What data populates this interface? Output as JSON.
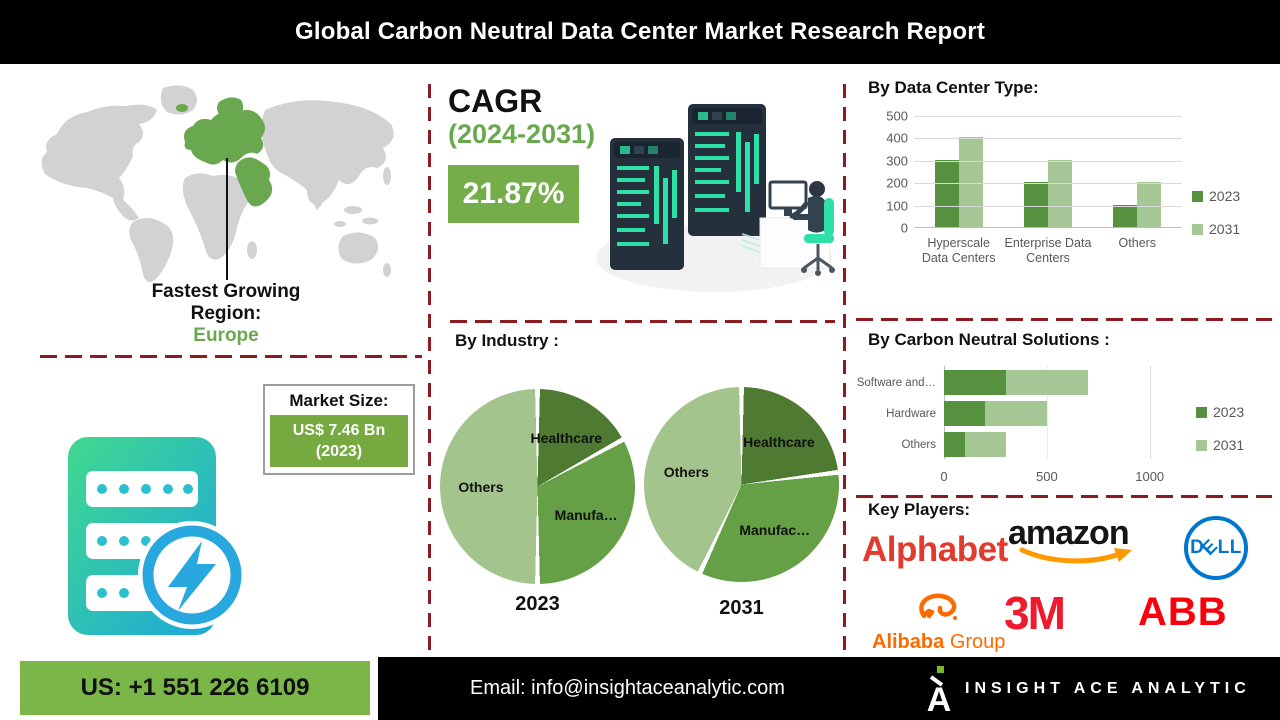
{
  "banner": {
    "title": "Global Carbon Neutral Data Center Market Research Report"
  },
  "map_section": {
    "caption_line1": "Fastest Growing",
    "caption_line2": "Region:",
    "region_value": "Europe",
    "land_color": "#d2d2d2",
    "highlight_color": "#6aa84f"
  },
  "cagr": {
    "heading": "CAGR",
    "period": "(2024-2031)",
    "value": "21.87%"
  },
  "market_size": {
    "label": "Market Size:",
    "value": "US$ 7.46 Bn",
    "year": "(2023)"
  },
  "key_players": {
    "heading": "Key Players:",
    "players": [
      {
        "name": "Alphabet",
        "color": "#e23b2e"
      },
      {
        "name": "amazon",
        "color": "#151515",
        "smile_color": "#ff9900"
      },
      {
        "name": "DELL",
        "color": "#0076ce"
      },
      {
        "name": "Alibaba Group",
        "name_parts": [
          "Alibaba",
          "Group"
        ],
        "color": "#ff6a00"
      },
      {
        "name": "3M",
        "color": "#ef1a2d"
      },
      {
        "name": "ABB",
        "color": "#fb000c"
      }
    ]
  },
  "footer": {
    "phone": "US: +1 551 226 6109",
    "email_label": "Email:",
    "email": "info@insightaceanalytic.com",
    "brand": "INSIGHT ACE ANALYTIC",
    "green": "#7ab648"
  },
  "chart_data": [
    {
      "type": "bar",
      "title": "By Data Center Type:",
      "categories": [
        "Hyperscale Data Centers",
        "Enterprise Data Centers",
        "Others"
      ],
      "series": [
        {
          "name": "2023",
          "color": "#569140",
          "values": [
            300,
            200,
            100
          ]
        },
        {
          "name": "2031",
          "color": "#a5c795",
          "values": [
            400,
            300,
            200
          ]
        }
      ],
      "ylim": [
        0,
        500
      ],
      "yticks": [
        0,
        100,
        200,
        300,
        400,
        500
      ],
      "grid": true,
      "legend_position": "right"
    },
    {
      "type": "pie",
      "title": "By Industry :",
      "pies": [
        {
          "label": "2023",
          "slices": [
            {
              "name": "Healthcare",
              "pct": 17,
              "color": "#4e7b31"
            },
            {
              "name": "Manufa…",
              "pct": 33,
              "color": "#66a046"
            },
            {
              "name": "Others",
              "pct": 50,
              "color": "#a4c48d"
            }
          ]
        },
        {
          "label": "2031",
          "slices": [
            {
              "name": "Healthcare",
              "pct": 23,
              "color": "#4e7b31"
            },
            {
              "name": "Manufac…",
              "pct": 34,
              "color": "#66a046"
            },
            {
              "name": "Others",
              "pct": 43,
              "color": "#a4c48d"
            }
          ]
        }
      ]
    },
    {
      "type": "bar",
      "subtype": "horizontal-stacked",
      "title": "By Carbon Neutral Solutions :",
      "categories": [
        "Software and…",
        "Hardware",
        "Others"
      ],
      "series": [
        {
          "name": "2023",
          "color": "#569140",
          "values": [
            300,
            200,
            100
          ]
        },
        {
          "name": "2031",
          "color": "#a5c795",
          "values": [
            400,
            300,
            200
          ]
        }
      ],
      "xlim": [
        0,
        1225
      ],
      "xticks": [
        0,
        500,
        1000
      ],
      "legend_position": "right"
    }
  ]
}
